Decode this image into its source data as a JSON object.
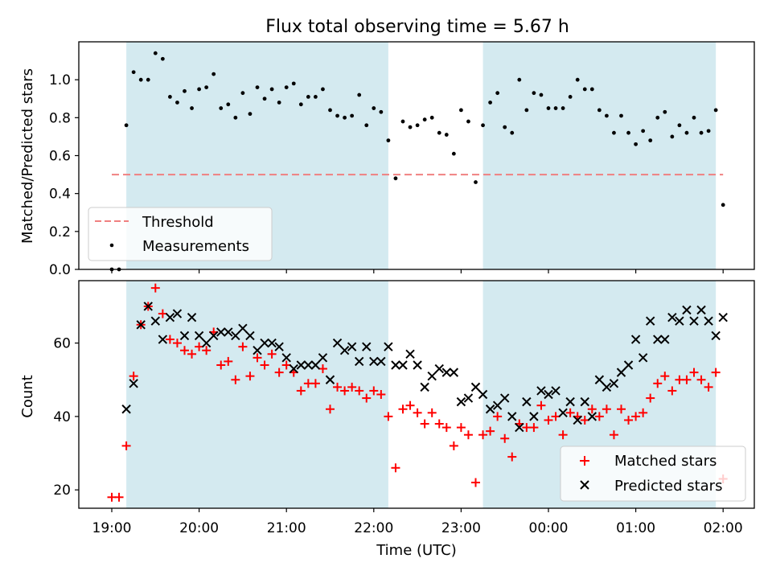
{
  "chart_data": [
    {
      "type": "scatter",
      "title": "Flux total observing time = 5.67 h",
      "ylabel": "Matched/Predicted stars",
      "ylim": [
        0,
        1.2
      ],
      "yticks": [
        "0.0",
        "0.2",
        "0.4",
        "0.6",
        "0.8",
        "1.0"
      ],
      "ytick_values": [
        0,
        0.2,
        0.4,
        0.6,
        0.8,
        1.0
      ],
      "legend": {
        "position": "lower-left",
        "entries": [
          "Threshold",
          "Measurements"
        ]
      },
      "threshold": {
        "name": "Threshold",
        "value": 0.5,
        "color": "#f08080"
      },
      "shaded_bands": [
        [
          "19:10",
          "22:10"
        ],
        [
          "23:15",
          "01:55"
        ]
      ],
      "band_color": "#d4eaf0",
      "series": [
        {
          "name": "Measurements",
          "color": "#000000",
          "x": [
            "19:00",
            "19:05",
            "19:10",
            "19:15",
            "19:20",
            "19:25",
            "19:30",
            "19:35",
            "19:40",
            "19:45",
            "19:50",
            "19:55",
            "20:00",
            "20:05",
            "20:10",
            "20:15",
            "20:20",
            "20:25",
            "20:30",
            "20:35",
            "20:40",
            "20:45",
            "20:50",
            "20:55",
            "21:00",
            "21:05",
            "21:10",
            "21:15",
            "21:20",
            "21:25",
            "21:30",
            "21:35",
            "21:40",
            "21:45",
            "21:50",
            "21:55",
            "22:00",
            "22:05",
            "22:10",
            "22:15",
            "22:20",
            "22:25",
            "22:30",
            "22:35",
            "22:40",
            "22:45",
            "22:50",
            "22:55",
            "23:00",
            "23:05",
            "23:10",
            "23:15",
            "23:20",
            "23:25",
            "23:30",
            "23:35",
            "23:40",
            "23:45",
            "23:50",
            "23:55",
            "00:00",
            "00:05",
            "00:10",
            "00:15",
            "00:20",
            "00:25",
            "00:30",
            "00:35",
            "00:40",
            "00:45",
            "00:50",
            "00:55",
            "01:00",
            "01:05",
            "01:10",
            "01:15",
            "01:20",
            "01:25",
            "01:30",
            "01:35",
            "01:40",
            "01:45",
            "01:50",
            "01:55",
            "02:00"
          ],
          "values": [
            0.0,
            0.0,
            0.76,
            1.04,
            1.0,
            1.0,
            1.14,
            1.11,
            0.91,
            0.88,
            0.94,
            0.85,
            0.95,
            0.96,
            1.03,
            0.85,
            0.87,
            0.8,
            0.93,
            0.82,
            0.96,
            0.9,
            0.95,
            0.88,
            0.96,
            0.98,
            0.87,
            0.91,
            0.91,
            0.95,
            0.84,
            0.81,
            0.8,
            0.81,
            0.92,
            0.76,
            0.85,
            0.83,
            0.68,
            0.48,
            0.78,
            0.75,
            0.76,
            0.79,
            0.8,
            0.72,
            0.71,
            0.61,
            0.84,
            0.78,
            0.46,
            0.76,
            0.88,
            0.93,
            0.75,
            0.72,
            1.0,
            0.84,
            0.93,
            0.92,
            0.85,
            0.85,
            0.85,
            0.91,
            1.0,
            0.95,
            0.95,
            0.84,
            0.81,
            0.72,
            0.81,
            0.72,
            0.66,
            0.73,
            0.68,
            0.8,
            0.83,
            0.7,
            0.76,
            0.72,
            0.8,
            0.72,
            0.73,
            0.84,
            0.34
          ]
        }
      ]
    },
    {
      "type": "scatter",
      "title": "",
      "xlabel": "Time (UTC)",
      "ylabel": "Count",
      "ylim": [
        15,
        77
      ],
      "yticks": [
        "20",
        "40",
        "60"
      ],
      "ytick_values": [
        20,
        40,
        60
      ],
      "xticks": [
        "19:00",
        "20:00",
        "21:00",
        "22:00",
        "23:00",
        "00:00",
        "01:00",
        "02:00"
      ],
      "legend": {
        "position": "lower-right",
        "entries": [
          "Matched stars",
          "Predicted stars"
        ]
      },
      "shaded_bands": [
        [
          "19:10",
          "22:10"
        ],
        [
          "23:15",
          "01:55"
        ]
      ],
      "band_color": "#d4eaf0",
      "series": [
        {
          "name": "Matched stars",
          "marker": "+",
          "color": "#ff0000",
          "x": [
            "19:00",
            "19:05",
            "19:10",
            "19:15",
            "19:20",
            "19:25",
            "19:30",
            "19:35",
            "19:40",
            "19:45",
            "19:50",
            "19:55",
            "20:00",
            "20:05",
            "20:10",
            "20:15",
            "20:20",
            "20:25",
            "20:30",
            "20:35",
            "20:40",
            "20:45",
            "20:50",
            "20:55",
            "21:00",
            "21:05",
            "21:10",
            "21:15",
            "21:20",
            "21:25",
            "21:30",
            "21:35",
            "21:40",
            "21:45",
            "21:50",
            "21:55",
            "22:00",
            "22:05",
            "22:10",
            "22:15",
            "22:20",
            "22:25",
            "22:30",
            "22:35",
            "22:40",
            "22:45",
            "22:50",
            "22:55",
            "23:00",
            "23:05",
            "23:10",
            "23:15",
            "23:20",
            "23:25",
            "23:30",
            "23:35",
            "23:40",
            "23:45",
            "23:50",
            "23:55",
            "00:00",
            "00:05",
            "00:10",
            "00:15",
            "00:20",
            "00:25",
            "00:30",
            "00:35",
            "00:40",
            "00:45",
            "00:50",
            "00:55",
            "01:00",
            "01:05",
            "01:10",
            "01:15",
            "01:20",
            "01:25",
            "01:30",
            "01:35",
            "01:40",
            "01:45",
            "01:50",
            "01:55",
            "02:00"
          ],
          "values": [
            18,
            18,
            32,
            51,
            65,
            70,
            75,
            68,
            61,
            60,
            58,
            57,
            59,
            58,
            63,
            54,
            55,
            50,
            59,
            51,
            56,
            54,
            57,
            52,
            54,
            52,
            47,
            49,
            49,
            53,
            42,
            48,
            47,
            48,
            47,
            45,
            47,
            46,
            40,
            26,
            42,
            43,
            41,
            38,
            41,
            38,
            37,
            32,
            37,
            35,
            22,
            35,
            36,
            40,
            34,
            29,
            38,
            37,
            37,
            43,
            39,
            40,
            35,
            41,
            40,
            39,
            42,
            40,
            42,
            35,
            42,
            39,
            40,
            41,
            45,
            49,
            51,
            47,
            50,
            50,
            52,
            50,
            48,
            52,
            23
          ]
        },
        {
          "name": "Predicted stars",
          "marker": "x",
          "color": "#000000",
          "x": [
            "19:10",
            "19:15",
            "19:20",
            "19:25",
            "19:30",
            "19:35",
            "19:40",
            "19:45",
            "19:50",
            "19:55",
            "20:00",
            "20:05",
            "20:10",
            "20:15",
            "20:20",
            "20:25",
            "20:30",
            "20:35",
            "20:40",
            "20:45",
            "20:50",
            "20:55",
            "21:00",
            "21:05",
            "21:10",
            "21:15",
            "21:20",
            "21:25",
            "21:30",
            "21:35",
            "21:40",
            "21:45",
            "21:50",
            "21:55",
            "22:00",
            "22:05",
            "22:10",
            "22:15",
            "22:20",
            "22:25",
            "22:30",
            "22:35",
            "22:40",
            "22:45",
            "22:50",
            "22:55",
            "23:00",
            "23:05",
            "23:10",
            "23:15",
            "23:20",
            "23:25",
            "23:30",
            "23:35",
            "23:40",
            "23:45",
            "23:50",
            "23:55",
            "00:00",
            "00:05",
            "00:10",
            "00:15",
            "00:20",
            "00:25",
            "00:30",
            "00:35",
            "00:40",
            "00:45",
            "00:50",
            "00:55",
            "01:00",
            "01:05",
            "01:10",
            "01:15",
            "01:20",
            "01:25",
            "01:30",
            "01:35",
            "01:40",
            "01:45",
            "01:50",
            "01:55",
            "02:00"
          ],
          "values": [
            42,
            49,
            65,
            70,
            66,
            61,
            67,
            68,
            62,
            67,
            62,
            60,
            62,
            63,
            63,
            62,
            64,
            62,
            58,
            60,
            60,
            59,
            56,
            53,
            54,
            54,
            54,
            56,
            50,
            60,
            58,
            59,
            55,
            59,
            55,
            55,
            59,
            54,
            54,
            57,
            54,
            48,
            51,
            53,
            52,
            52,
            44,
            45,
            48,
            46,
            42,
            43,
            45,
            40,
            37,
            44,
            40,
            47,
            46,
            47,
            41,
            44,
            39,
            44,
            40,
            50,
            48,
            49,
            52,
            54,
            61,
            56,
            66,
            61,
            61,
            67,
            66,
            69,
            66,
            69,
            66,
            62,
            67
          ]
        }
      ]
    }
  ]
}
